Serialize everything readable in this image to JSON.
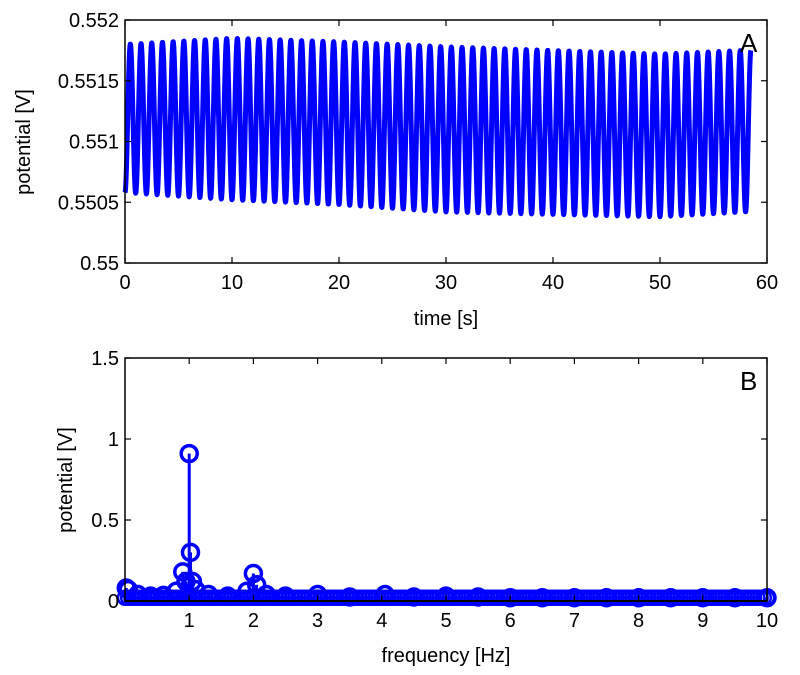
{
  "chart_data": [
    {
      "type": "line",
      "panel_label": "A",
      "xlabel": "time [s]",
      "ylabel": "potential [V]",
      "xlim": [
        0,
        60
      ],
      "ylim": [
        0.55,
        0.552
      ],
      "xticks": [
        0,
        10,
        20,
        30,
        40,
        50,
        60
      ],
      "yticks": [
        0.55,
        0.5505,
        0.551,
        0.5515,
        0.552
      ],
      "ytick_labels": [
        "0.55",
        "0.5505",
        "0.551",
        "0.5515",
        "0.552"
      ],
      "grid": false,
      "series": [
        {
          "name": "potential",
          "color": "#0000ff",
          "description": "oscillation approx. 1 Hz",
          "x_start": 0,
          "x_end": 58.5,
          "frequency_hz": 1.0,
          "peaks": [
            [
              0,
              0.5518
            ],
            [
              10,
              0.55185
            ],
            [
              20,
              0.55182
            ],
            [
              30,
              0.55178
            ],
            [
              40,
              0.55175
            ],
            [
              50,
              0.55172
            ],
            [
              58,
              0.55175
            ]
          ],
          "troughs": [
            [
              0,
              0.55058
            ],
            [
              10,
              0.55052
            ],
            [
              20,
              0.55048
            ],
            [
              30,
              0.55042
            ],
            [
              40,
              0.5504
            ],
            [
              50,
              0.55038
            ],
            [
              58,
              0.55042
            ]
          ],
          "first_point": [
            0,
            0.55058
          ],
          "last_point": [
            58.5,
            0.5507
          ]
        }
      ]
    },
    {
      "type": "stem",
      "panel_label": "B",
      "xlabel": "frequency [Hz]",
      "ylabel": "potential [V]",
      "xlim": [
        0,
        10
      ],
      "ylim": [
        0,
        1.5
      ],
      "xticks": [
        1,
        2,
        3,
        4,
        5,
        6,
        7,
        8,
        9,
        10
      ],
      "yticks": [
        0,
        0.5,
        1,
        1.5
      ],
      "ytick_labels": [
        "0",
        "0.5",
        "1",
        "1.5"
      ],
      "grid": false,
      "baseline": 0,
      "color": "#0000ff",
      "baseline_color": "#000000",
      "points": [
        [
          0.02,
          0.08
        ],
        [
          0.05,
          0.07
        ],
        [
          0.2,
          0.04
        ],
        [
          0.4,
          0.03
        ],
        [
          0.6,
          0.035
        ],
        [
          0.8,
          0.06
        ],
        [
          0.9,
          0.18
        ],
        [
          0.95,
          0.12
        ],
        [
          1.0,
          0.91
        ],
        [
          1.02,
          0.3
        ],
        [
          1.05,
          0.12
        ],
        [
          1.1,
          0.07
        ],
        [
          1.3,
          0.04
        ],
        [
          1.6,
          0.03
        ],
        [
          1.9,
          0.06
        ],
        [
          2.0,
          0.17
        ],
        [
          2.05,
          0.1
        ],
        [
          2.2,
          0.04
        ],
        [
          2.5,
          0.03
        ],
        [
          3.0,
          0.04
        ],
        [
          3.5,
          0.025
        ],
        [
          4.05,
          0.04
        ],
        [
          4.5,
          0.025
        ],
        [
          5.0,
          0.03
        ],
        [
          5.5,
          0.025
        ],
        [
          6.0,
          0.02
        ],
        [
          6.5,
          0.02
        ],
        [
          7.0,
          0.02
        ],
        [
          7.5,
          0.02
        ],
        [
          8.0,
          0.02
        ],
        [
          8.5,
          0.02
        ],
        [
          9.0,
          0.02
        ],
        [
          9.5,
          0.02
        ],
        [
          10.0,
          0.02
        ]
      ]
    }
  ]
}
